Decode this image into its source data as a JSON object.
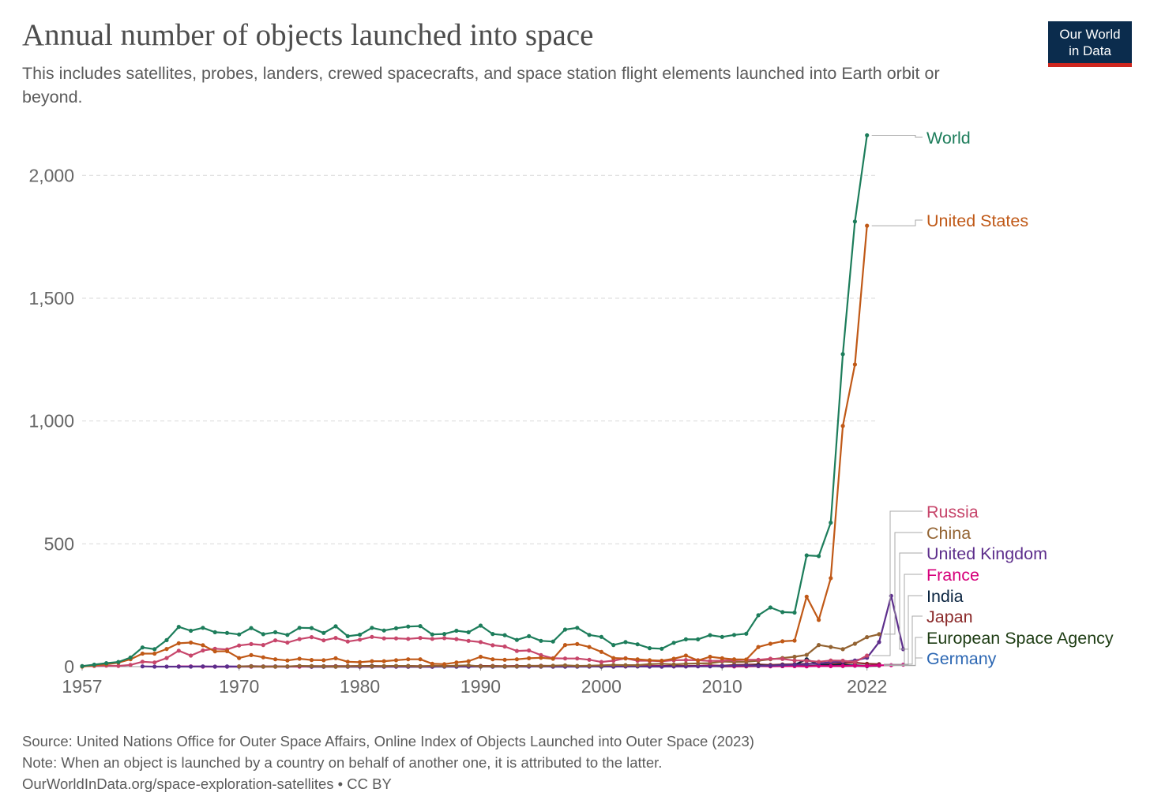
{
  "header": {
    "title": "Annual number of objects launched into space",
    "subtitle": "This includes satellites, probes, landers, crewed spacecrafts, and space station flight elements launched into Earth orbit or beyond."
  },
  "logo": {
    "line1": "Our World",
    "line2": "in Data"
  },
  "footer": {
    "source": "Source: United Nations Office for Outer Space Affairs, Online Index of Objects Launched into Outer Space (2023)",
    "note": "Note: When an object is launched by a country on behalf of another one, it is attributed to the latter.",
    "credit": "OurWorldInData.org/space-exploration-satellites • CC BY"
  },
  "chart_data": {
    "type": "line",
    "title": "Annual number of objects launched into space",
    "xlabel": "",
    "ylabel": "",
    "xlim": [
      1957,
      2023
    ],
    "ylim": [
      0,
      2200
    ],
    "x_ticks": [
      1957,
      1970,
      1980,
      1990,
      2000,
      2010,
      2022
    ],
    "y_ticks": [
      0,
      500,
      1000,
      1500,
      2000
    ],
    "y_tick_labels": [
      "0",
      "500",
      "1,000",
      "1,500",
      "2,000"
    ],
    "grid": "horizontal dashed",
    "legend": "right-end line labels",
    "series": [
      {
        "name": "World",
        "color": "#1d7d5b",
        "start": 1957,
        "values": [
          2,
          8,
          14,
          19,
          37,
          78,
          71,
          108,
          162,
          146,
          158,
          140,
          137,
          131,
          157,
          132,
          140,
          129,
          158,
          157,
          137,
          164,
          124,
          130,
          158,
          147,
          156,
          163,
          165,
          131,
          133,
          146,
          140,
          167,
          133,
          128,
          109,
          124,
          105,
          102,
          151,
          158,
          129,
          121,
          88,
          100,
          91,
          75,
          73,
          97,
          111,
          111,
          128,
          121,
          129,
          134,
          209,
          241,
          222,
          220,
          453,
          450,
          586,
          1272,
          1812,
          2163
        ]
      },
      {
        "name": "United States",
        "color": "#c05917",
        "start": 1957,
        "values": [
          0,
          5,
          10,
          16,
          30,
          53,
          53,
          72,
          95,
          98,
          87,
          62,
          63,
          35,
          47,
          38,
          30,
          25,
          32,
          27,
          26,
          34,
          20,
          18,
          22,
          22,
          26,
          30,
          30,
          12,
          10,
          17,
          22,
          40,
          30,
          28,
          30,
          34,
          36,
          32,
          88,
          92,
          80,
          60,
          35,
          33,
          30,
          26,
          24,
          32,
          45,
          25,
          40,
          34,
          30,
          29,
          80,
          93,
          103,
          106,
          285,
          190,
          360,
          980,
          1230,
          1795
        ]
      },
      {
        "name": "Russia",
        "color": "#c7466b",
        "start": 1957,
        "values": [
          2,
          3,
          4,
          3,
          7,
          20,
          17,
          35,
          65,
          45,
          66,
          73,
          70,
          86,
          92,
          88,
          107,
          98,
          112,
          120,
          107,
          117,
          102,
          110,
          121,
          115,
          115,
          113,
          117,
          113,
          116,
          112,
          105,
          100,
          87,
          82,
          64,
          66,
          47,
          34,
          33,
          33,
          28,
          19,
          24,
          34,
          24,
          24,
          22,
          26,
          27,
          26,
          23,
          24,
          26,
          28,
          28,
          32,
          31,
          25,
          24,
          20,
          25,
          24,
          19,
          45
        ]
      },
      {
        "name": "China",
        "color": "#936332",
        "start": 1970,
        "values": [
          1,
          1,
          0,
          0,
          1,
          3,
          2,
          1,
          0,
          1,
          3,
          1,
          2,
          3,
          3,
          1,
          4,
          2,
          4,
          5,
          1,
          2,
          1,
          1,
          4,
          2,
          4,
          5,
          3,
          4,
          5,
          7,
          6,
          6,
          10,
          12,
          9,
          12,
          13,
          14,
          21,
          19,
          20,
          24,
          30,
          35,
          40,
          48,
          88,
          80,
          71,
          93,
          120,
          132
        ]
      },
      {
        "name": "United Kingdom",
        "color": "#5d2e8c",
        "start": 1962,
        "values": [
          1,
          0,
          0,
          0,
          0,
          1,
          0,
          0,
          0,
          1,
          0,
          0,
          0,
          2,
          0,
          0,
          0,
          0,
          0,
          0,
          0,
          0,
          0,
          0,
          0,
          0,
          0,
          0,
          0,
          0,
          0,
          0,
          0,
          1,
          0,
          0,
          0,
          0,
          1,
          0,
          1,
          1,
          0,
          0,
          1,
          1,
          1,
          1,
          3,
          4,
          5,
          3,
          4,
          6,
          8,
          10,
          13,
          18,
          20,
          25,
          36,
          100,
          288,
          71
        ]
      },
      {
        "name": "France",
        "color": "#d6007b",
        "start": 1965,
        "values": [
          1,
          1,
          0,
          0,
          0,
          0,
          0,
          0,
          0,
          0,
          0,
          0,
          0,
          0,
          0,
          0,
          0,
          0,
          0,
          0,
          0,
          0,
          1,
          1,
          1,
          1,
          2,
          1,
          1,
          1,
          1,
          1,
          2,
          1,
          1,
          2,
          1,
          1,
          2,
          1,
          2,
          1,
          1,
          2,
          3,
          2,
          1,
          2,
          2,
          1,
          2,
          2,
          1,
          3,
          2,
          3,
          4,
          3,
          5,
          6,
          8
        ]
      },
      {
        "name": "India",
        "color": "#0a2440",
        "start": 1975,
        "values": [
          1,
          0,
          0,
          0,
          1,
          1,
          2,
          0,
          1,
          0,
          0,
          0,
          1,
          1,
          0,
          1,
          0,
          1,
          1,
          1,
          0,
          1,
          1,
          1,
          1,
          0,
          1,
          2,
          1,
          1,
          3,
          2,
          1,
          3,
          2,
          3,
          3,
          4,
          5,
          4,
          7,
          7,
          30,
          8,
          6,
          8,
          4,
          2,
          6
        ]
      },
      {
        "name": "Japan",
        "color": "#8b2a2a",
        "start": 1970,
        "values": [
          1,
          2,
          1,
          1,
          1,
          2,
          2,
          2,
          2,
          2,
          3,
          3,
          2,
          3,
          3,
          2,
          2,
          3,
          2,
          2,
          3,
          3,
          2,
          3,
          3,
          4,
          3,
          3,
          2,
          2,
          2,
          3,
          3,
          2,
          3,
          2,
          4,
          3,
          3,
          5,
          4,
          7,
          8,
          9,
          7,
          9,
          10,
          12,
          11,
          10,
          14,
          16,
          12,
          10
        ]
      },
      {
        "name": "European Space Agency",
        "color": "#1e3d14",
        "start": 1975,
        "values": [
          1,
          0,
          0,
          1,
          0,
          0,
          1,
          1,
          1,
          0,
          0,
          0,
          2,
          0,
          1,
          1,
          1,
          0,
          1,
          2,
          1,
          0,
          0,
          1,
          1,
          1,
          0,
          1,
          2,
          2,
          0,
          1,
          1,
          2,
          2,
          1,
          1,
          1,
          2,
          3,
          2,
          3,
          2,
          4,
          4,
          3,
          5,
          3,
          4
        ]
      },
      {
        "name": "Germany",
        "color": "#2c67b3",
        "start": 1969,
        "values": [
          1,
          0,
          0,
          0,
          1,
          0,
          1,
          0,
          0,
          0,
          0,
          0,
          0,
          0,
          0,
          0,
          0,
          0,
          0,
          0,
          1,
          1,
          0,
          0,
          1,
          1,
          1,
          1,
          1,
          0,
          2,
          1,
          1,
          1,
          1,
          2,
          3,
          2,
          2,
          2,
          3,
          1,
          2,
          2,
          3,
          3,
          2,
          3,
          3,
          4,
          4,
          5,
          6,
          3,
          5
        ]
      }
    ]
  }
}
